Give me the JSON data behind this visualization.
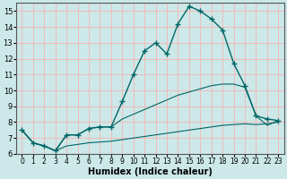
{
  "xlabel": "Humidex (Indice chaleur)",
  "background_color": "#cce8e8",
  "grid_color": "#ffaaaa",
  "line_color": "#006666",
  "xlim": [
    -0.5,
    23.5
  ],
  "ylim": [
    6,
    15.5
  ],
  "xticks": [
    0,
    1,
    2,
    3,
    4,
    5,
    6,
    7,
    8,
    9,
    10,
    11,
    12,
    13,
    14,
    15,
    16,
    17,
    18,
    19,
    20,
    21,
    22,
    23
  ],
  "yticks": [
    6,
    7,
    8,
    9,
    10,
    11,
    12,
    13,
    14,
    15
  ],
  "curve_main": {
    "x": [
      0,
      1,
      2,
      3,
      4,
      5,
      6,
      7,
      8,
      9,
      10,
      11,
      12,
      13,
      14,
      15,
      16,
      17,
      18,
      19,
      20,
      21,
      22,
      23
    ],
    "y": [
      7.5,
      6.7,
      6.5,
      6.2,
      7.2,
      7.2,
      7.6,
      7.7,
      7.7,
      9.3,
      11.0,
      12.5,
      13.0,
      12.3,
      14.2,
      15.3,
      15.0,
      14.5,
      13.8,
      11.7,
      10.3,
      8.4,
      8.2,
      8.1
    ]
  },
  "curve_mid": {
    "x": [
      0,
      1,
      2,
      3,
      4,
      5,
      6,
      7,
      8,
      9,
      10,
      11,
      12,
      13,
      14,
      15,
      16,
      17,
      18,
      19,
      20,
      21,
      22,
      23
    ],
    "y": [
      7.5,
      6.7,
      6.5,
      6.2,
      7.2,
      7.2,
      7.6,
      7.7,
      7.7,
      8.2,
      8.5,
      8.8,
      9.1,
      9.4,
      9.7,
      9.9,
      10.1,
      10.3,
      10.4,
      10.4,
      10.2,
      8.4,
      7.8,
      8.1
    ]
  },
  "curve_low": {
    "x": [
      0,
      1,
      2,
      3,
      4,
      5,
      6,
      7,
      8,
      9,
      10,
      11,
      12,
      13,
      14,
      15,
      16,
      17,
      18,
      19,
      20,
      21,
      22,
      23
    ],
    "y": [
      7.5,
      6.7,
      6.5,
      6.2,
      6.5,
      6.6,
      6.7,
      6.75,
      6.8,
      6.9,
      7.0,
      7.1,
      7.2,
      7.3,
      7.4,
      7.5,
      7.6,
      7.7,
      7.8,
      7.85,
      7.9,
      7.85,
      7.9,
      8.0
    ]
  }
}
